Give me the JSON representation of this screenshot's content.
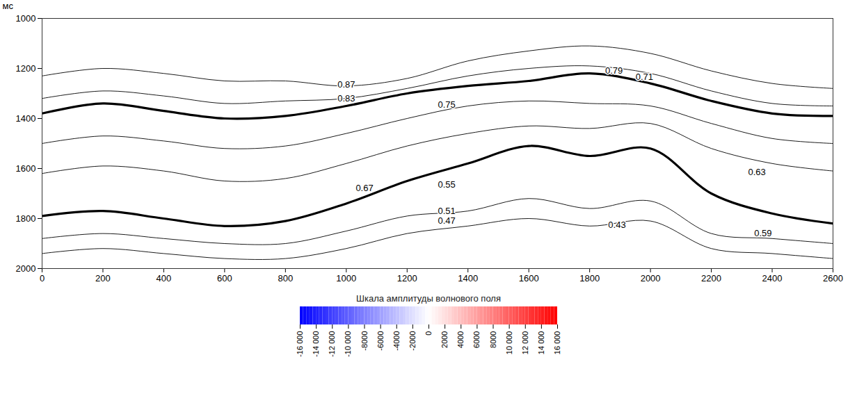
{
  "chart_data": {
    "type": "line",
    "y_label": "мс",
    "xlim": [
      0,
      2600
    ],
    "xticks": [
      0,
      200,
      400,
      600,
      800,
      1000,
      1200,
      1400,
      1600,
      1800,
      2000,
      2200,
      2400,
      2600
    ],
    "ylim": [
      2000,
      1000
    ],
    "yticks": [
      1000,
      1200,
      1400,
      1600,
      1800,
      2000
    ],
    "x": [
      0,
      200,
      400,
      600,
      800,
      1000,
      1200,
      1400,
      1600,
      1800,
      2000,
      2200,
      2400,
      2600
    ],
    "series": [
      {
        "color": "#000000",
        "line_style": "solid",
        "values": [
          1230,
          1200,
          1220,
          1250,
          1250,
          1270,
          1240,
          1170,
          1130,
          1110,
          1140,
          1210,
          1260,
          1280
        ]
      },
      {
        "color": "#000000",
        "line_style": "solid",
        "values": [
          1320,
          1290,
          1310,
          1340,
          1330,
          1320,
          1280,
          1230,
          1200,
          1190,
          1220,
          1290,
          1340,
          1350
        ]
      },
      {
        "color": "#000000",
        "line_style": "bold",
        "values": [
          1380,
          1340,
          1370,
          1400,
          1390,
          1350,
          1300,
          1270,
          1250,
          1220,
          1260,
          1330,
          1380,
          1390
        ]
      },
      {
        "color": "#000000",
        "line_style": "solid",
        "values": [
          1500,
          1470,
          1490,
          1520,
          1510,
          1460,
          1400,
          1350,
          1330,
          1340,
          1350,
          1420,
          1480,
          1500
        ]
      },
      {
        "color": "#000000",
        "line_style": "solid",
        "values": [
          1620,
          1590,
          1610,
          1650,
          1640,
          1580,
          1510,
          1460,
          1430,
          1440,
          1420,
          1520,
          1580,
          1610
        ]
      },
      {
        "color": "#000000",
        "line_style": "bold",
        "values": [
          1790,
          1770,
          1800,
          1830,
          1810,
          1740,
          1650,
          1580,
          1510,
          1550,
          1520,
          1700,
          1780,
          1820
        ]
      },
      {
        "color": "#000000",
        "line_style": "solid",
        "values": [
          1880,
          1860,
          1880,
          1900,
          1900,
          1850,
          1790,
          1770,
          1720,
          1760,
          1730,
          1860,
          1880,
          1900
        ]
      },
      {
        "color": "#000000",
        "line_style": "solid",
        "values": [
          1940,
          1920,
          1940,
          1960,
          1960,
          1920,
          1860,
          1830,
          1800,
          1830,
          1810,
          1920,
          1940,
          1960
        ]
      }
    ],
    "annotations": [
      {
        "text": "0.87",
        "x": 1000,
        "y": 1265
      },
      {
        "text": "0.83",
        "x": 1000,
        "y": 1320
      },
      {
        "text": "0.75",
        "x": 1330,
        "y": 1345
      },
      {
        "text": "0.79",
        "x": 1880,
        "y": 1210
      },
      {
        "text": "0.71",
        "x": 1980,
        "y": 1235
      },
      {
        "text": "0.67",
        "x": 1060,
        "y": 1680
      },
      {
        "text": "0.55",
        "x": 1330,
        "y": 1665
      },
      {
        "text": "0.51",
        "x": 1330,
        "y": 1770
      },
      {
        "text": "0.47",
        "x": 1330,
        "y": 1810
      },
      {
        "text": "0.43",
        "x": 1890,
        "y": 1825
      },
      {
        "text": "0.63",
        "x": 2350,
        "y": 1615
      },
      {
        "text": "0.59",
        "x": 2370,
        "y": 1860
      }
    ],
    "colorbar": {
      "title": "Шкала амплитуды волнового поля",
      "range": [
        -16000,
        16000
      ],
      "colors": [
        "#0000ff",
        "#ffffff",
        "#ff0000"
      ],
      "ticks": [
        {
          "value": -16000,
          "label": "-16 000"
        },
        {
          "value": -14000,
          "label": "-14 000"
        },
        {
          "value": -12000,
          "label": "-12 000"
        },
        {
          "value": -10000,
          "label": "-10 000"
        },
        -8000,
        -6000,
        -4000,
        -2000,
        0,
        2000,
        4000,
        6000,
        8000,
        {
          "value": 10000,
          "label": "10 000"
        },
        {
          "value": 12000,
          "label": "12 000"
        },
        {
          "value": 14000,
          "label": "14 000"
        },
        {
          "value": 16000,
          "label": "16 000"
        }
      ]
    }
  }
}
